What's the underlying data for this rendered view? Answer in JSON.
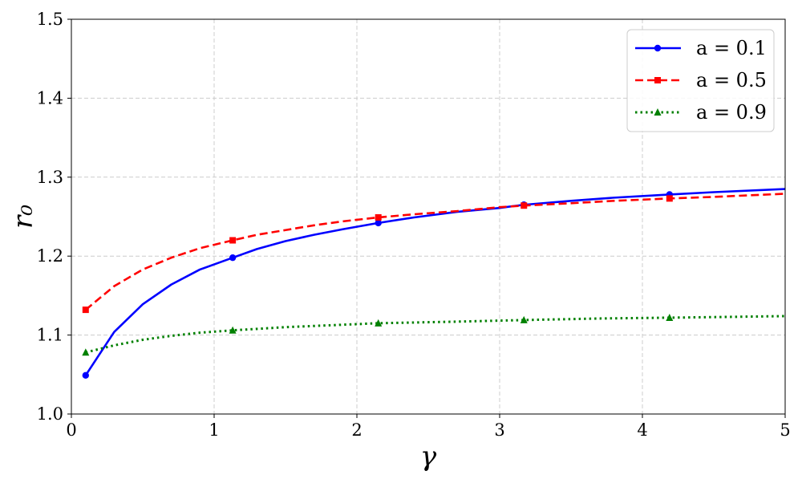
{
  "chart_data": {
    "type": "line",
    "xlabel": "γ",
    "ylabel": "r₀",
    "xlim": [
      0,
      5
    ],
    "ylim": [
      1.0,
      1.5
    ],
    "xticks": [
      "0",
      "1",
      "2",
      "3",
      "4",
      "5"
    ],
    "yticks": [
      "1.0",
      "1.1",
      "1.2",
      "1.3",
      "1.4",
      "1.5"
    ],
    "grid": true,
    "legend_position": "top-right",
    "series": [
      {
        "name": "a = 0.1",
        "color": "#0000ff",
        "line_style": "solid",
        "marker": "circle",
        "x": [
          0.1,
          0.3,
          0.5,
          0.7,
          0.9,
          1.13,
          1.3,
          1.5,
          1.7,
          1.9,
          2.15,
          2.4,
          2.7,
          3.0,
          3.17,
          3.5,
          3.8,
          4.19,
          4.5,
          5.0
        ],
        "y": [
          1.049,
          1.104,
          1.139,
          1.164,
          1.183,
          1.198,
          1.209,
          1.219,
          1.227,
          1.234,
          1.242,
          1.249,
          1.256,
          1.261,
          1.265,
          1.27,
          1.274,
          1.278,
          1.281,
          1.285
        ],
        "marker_x": [
          0.1,
          1.13,
          2.15,
          3.17,
          4.19
        ],
        "marker_y": [
          1.049,
          1.198,
          1.242,
          1.265,
          1.278
        ]
      },
      {
        "name": "a = 0.5",
        "color": "#ff0000",
        "line_style": "dashed",
        "marker": "square",
        "x": [
          0.1,
          0.3,
          0.5,
          0.7,
          0.9,
          1.13,
          1.3,
          1.5,
          1.7,
          1.9,
          2.15,
          2.4,
          2.7,
          3.0,
          3.17,
          3.5,
          3.8,
          4.19,
          4.5,
          5.0
        ],
        "y": [
          1.132,
          1.162,
          1.183,
          1.198,
          1.21,
          1.22,
          1.227,
          1.233,
          1.239,
          1.244,
          1.249,
          1.253,
          1.257,
          1.262,
          1.264,
          1.267,
          1.27,
          1.273,
          1.275,
          1.279
        ],
        "marker_x": [
          0.1,
          1.13,
          2.15,
          3.17,
          4.19
        ],
        "marker_y": [
          1.132,
          1.22,
          1.249,
          1.264,
          1.273
        ]
      },
      {
        "name": "a = 0.9",
        "color": "#008000",
        "line_style": "dotted",
        "marker": "triangle",
        "x": [
          0.1,
          0.3,
          0.5,
          0.7,
          0.9,
          1.13,
          1.5,
          2.15,
          2.7,
          3.17,
          3.7,
          4.19,
          4.6,
          5.0
        ],
        "y": [
          1.078,
          1.087,
          1.094,
          1.099,
          1.103,
          1.106,
          1.11,
          1.115,
          1.117,
          1.119,
          1.121,
          1.122,
          1.123,
          1.124
        ],
        "marker_x": [
          0.1,
          1.13,
          2.15,
          3.17,
          4.19
        ],
        "marker_y": [
          1.078,
          1.106,
          1.115,
          1.119,
          1.122
        ]
      }
    ]
  }
}
